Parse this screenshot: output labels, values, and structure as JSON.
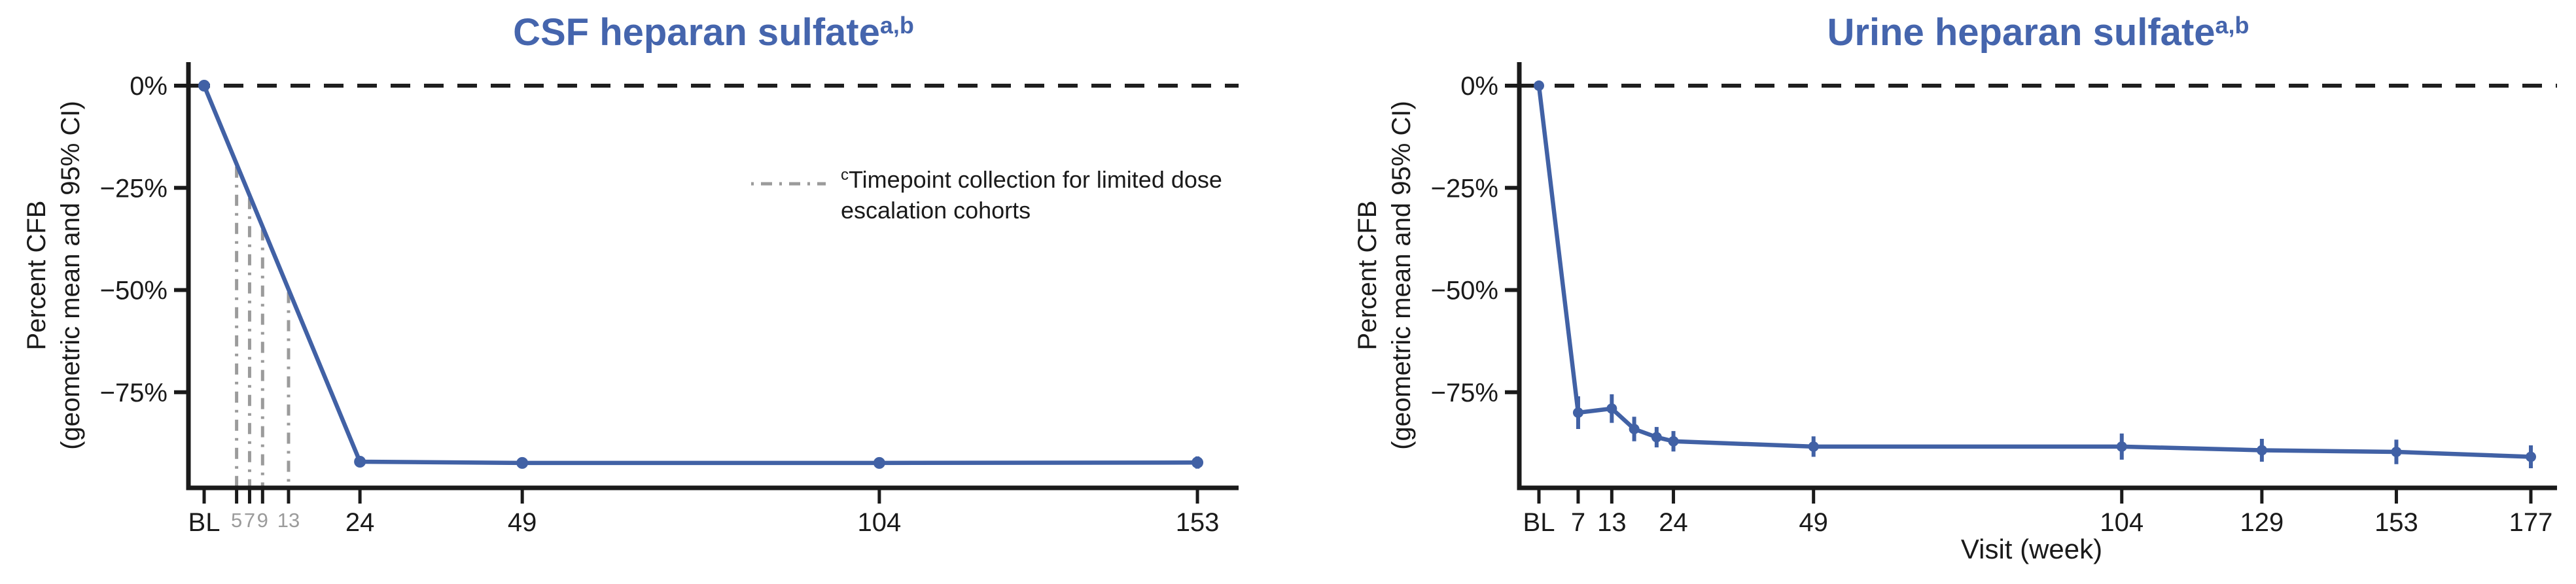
{
  "figure": {
    "background": "#ffffff",
    "colors": {
      "series_line": "#4161a5",
      "title_text": "#4565ad",
      "collection_line": "#9b9b9b",
      "minor_tick_label": "#9b9b9b",
      "axis": "#1a1a1a",
      "zero_line": "#1f1f1f",
      "tick_label": "#1a1a1a"
    }
  },
  "chart_data": [
    {
      "type": "line",
      "id": "csf",
      "title_main": "CSF heparan sulfate",
      "title_sup": "a,b",
      "ylabel_line1": "Percent CFB",
      "ylabel_line2": "(geometric mean and 95% CI)",
      "xlabel": "",
      "ylim": [
        -98.4,
        5.8
      ],
      "xlim_weeks": [
        0,
        159
      ],
      "grid": "off",
      "legend_position": "upper-right-inside",
      "y_ticks": [
        {
          "value": 0,
          "label": "0%"
        },
        {
          "value": -25,
          "label": "−25%"
        },
        {
          "value": -50,
          "label": "−50%"
        },
        {
          "value": -75,
          "label": "−75%"
        }
      ],
      "x_ticks": [
        {
          "week": 0,
          "label": "BL",
          "minor": false
        },
        {
          "week": 5,
          "label": "5",
          "minor": true
        },
        {
          "week": 7,
          "label": "7",
          "minor": true
        },
        {
          "week": 9,
          "label": "9",
          "minor": true
        },
        {
          "week": 13,
          "label": "13",
          "minor": true
        },
        {
          "week": 24,
          "label": "24",
          "minor": false
        },
        {
          "week": 49,
          "label": "49",
          "minor": false
        },
        {
          "week": 104,
          "label": "104",
          "minor": false
        },
        {
          "week": 153,
          "label": "153",
          "minor": false
        }
      ],
      "zero_reference_line": 0,
      "collection_timepoint_weeks": [
        5,
        7,
        9,
        13
      ],
      "series": [
        {
          "name": "CSF heparan sulfate percent CFB (geometric mean and 95% CI)",
          "points": [
            {
              "week": 0,
              "pct": 0,
              "ci_half": 0
            },
            {
              "week": 24,
              "pct": -92.0,
              "ci_half": 1.2
            },
            {
              "week": 49,
              "pct": -92.3,
              "ci_half": 1.0
            },
            {
              "week": 104,
              "pct": -92.3,
              "ci_half": 1.2
            },
            {
              "week": 153,
              "pct": -92.2,
              "ci_half": 1.5
            }
          ]
        }
      ],
      "legend": {
        "sup": "c",
        "line1": "Timepoint collection for limited dose",
        "line2": "escalation cohorts"
      }
    },
    {
      "type": "line",
      "id": "urine",
      "title_main": "Urine heparan sulfate",
      "title_sup": "a,b",
      "ylabel_line1": "Percent CFB",
      "ylabel_line2": "(geometric mean and 95% CI)",
      "xlabel": "Visit (week)",
      "ylim": [
        -98.4,
        5.8
      ],
      "xlim_weeks": [
        0,
        182
      ],
      "grid": "off",
      "y_ticks": [
        {
          "value": 0,
          "label": "0%"
        },
        {
          "value": -25,
          "label": "−25%"
        },
        {
          "value": -50,
          "label": "−50%"
        },
        {
          "value": -75,
          "label": "−75%"
        }
      ],
      "x_ticks": [
        {
          "week": 0,
          "label": "BL",
          "minor": false
        },
        {
          "week": 7,
          "label": "7",
          "minor": false
        },
        {
          "week": 13,
          "label": "13",
          "minor": false
        },
        {
          "week": 24,
          "label": "24",
          "minor": false
        },
        {
          "week": 49,
          "label": "49",
          "minor": false
        },
        {
          "week": 104,
          "label": "104",
          "minor": false
        },
        {
          "week": 129,
          "label": "129",
          "minor": false
        },
        {
          "week": 153,
          "label": "153",
          "minor": false
        },
        {
          "week": 177,
          "label": "177",
          "minor": false
        }
      ],
      "zero_reference_line": 0,
      "series": [
        {
          "name": "Urine heparan sulfate percent CFB (geometric mean and 95% CI)",
          "points": [
            {
              "week": 0,
              "pct": 0,
              "ci_half": 0
            },
            {
              "week": 7,
              "pct": -80.0,
              "ci_half": 4.0
            },
            {
              "week": 13,
              "pct": -79.0,
              "ci_half": 3.5
            },
            {
              "week": 17,
              "pct": -84.0,
              "ci_half": 3.0
            },
            {
              "week": 21,
              "pct": -86.0,
              "ci_half": 2.5
            },
            {
              "week": 24,
              "pct": -87.0,
              "ci_half": 2.5
            },
            {
              "week": 49,
              "pct": -88.3,
              "ci_half": 2.5
            },
            {
              "week": 104,
              "pct": -88.3,
              "ci_half": 3.2
            },
            {
              "week": 129,
              "pct": -89.2,
              "ci_half": 2.8
            },
            {
              "week": 153,
              "pct": -89.6,
              "ci_half": 3.0
            },
            {
              "week": 177,
              "pct": -90.8,
              "ci_half": 2.8
            }
          ]
        }
      ]
    }
  ]
}
